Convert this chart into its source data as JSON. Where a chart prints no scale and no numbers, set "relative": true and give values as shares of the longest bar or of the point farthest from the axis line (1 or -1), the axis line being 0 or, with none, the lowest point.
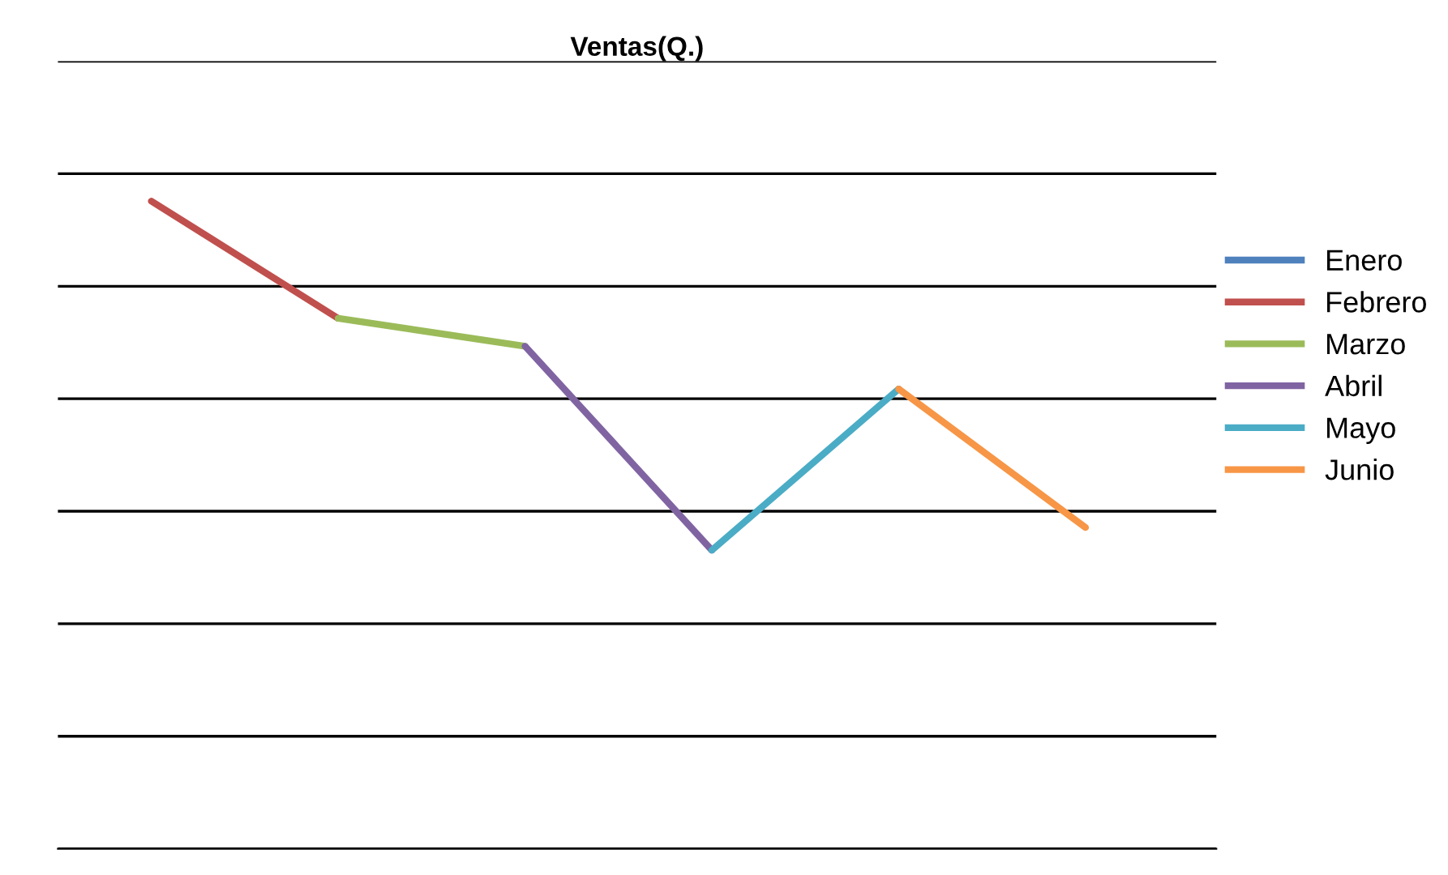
{
  "chart_data": {
    "type": "line",
    "title": "Ventas(Q.)",
    "relative": true,
    "categories": [
      null,
      null,
      null,
      null,
      null,
      null
    ],
    "series": [
      {
        "name": "Enero",
        "color": "#4f81bd",
        "values": [
          null,
          null,
          null,
          null,
          null,
          null
        ]
      },
      {
        "name": "Febrero",
        "color": "#c0504d",
        "values": [
          1,
          0.819,
          null,
          null,
          null,
          null
        ]
      },
      {
        "name": "Marzo",
        "color": "#9bbb59",
        "values": [
          null,
          0.819,
          0.776,
          null,
          null,
          null
        ]
      },
      {
        "name": "Abril",
        "color": "#8064a2",
        "values": [
          null,
          null,
          0.776,
          0.461,
          null,
          null
        ]
      },
      {
        "name": "Mayo",
        "color": "#4bacc6",
        "values": [
          null,
          null,
          null,
          0.461,
          0.71,
          null
        ]
      },
      {
        "name": "Junio",
        "color": "#f79646",
        "values": [
          null,
          null,
          null,
          null,
          0.71,
          0.496
        ]
      }
    ],
    "grid": "y",
    "legend": "right",
    "marker": "none",
    "line_style": "solid"
  }
}
